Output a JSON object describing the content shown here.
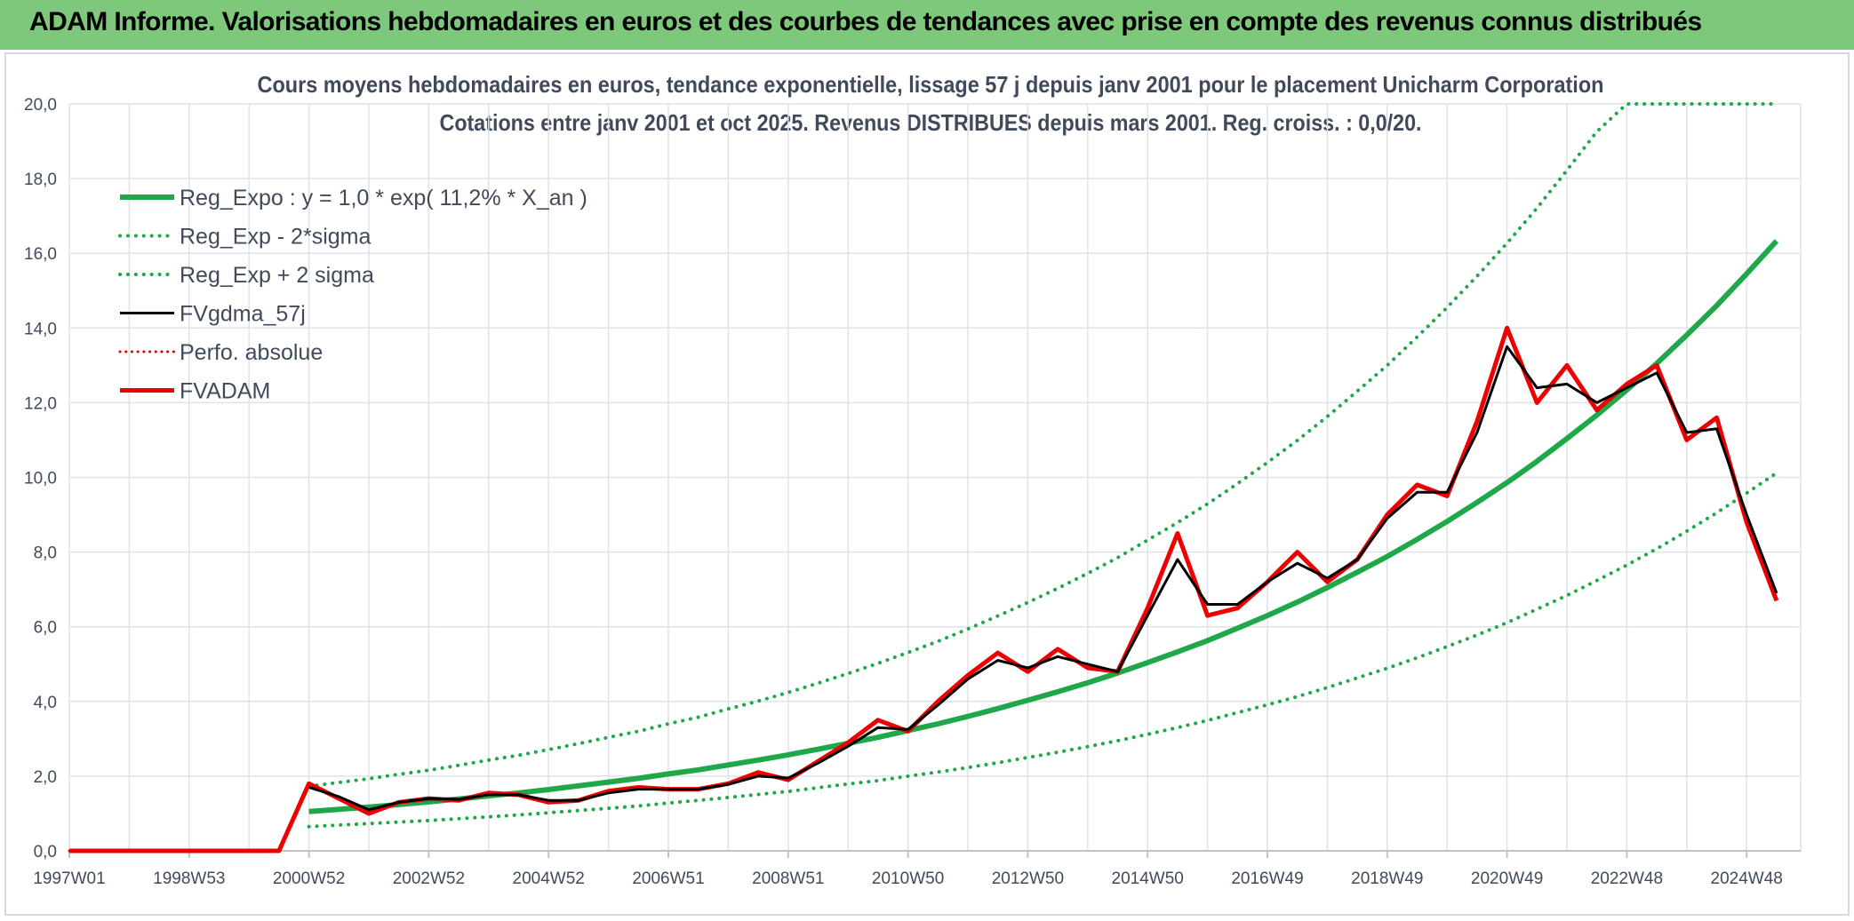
{
  "header": {
    "title": "ADAM Informe. Valorisations hebdomadaires en euros et des courbes de tendances avec prise en compte des revenus connus distribués"
  },
  "chart_data": {
    "type": "line",
    "title": "Cours moyens hebdomadaires en euros, tendance exponentielle, lissage 57 j depuis janv 2001 pour le placement Unicharm Corporation",
    "subtitle": "Cotations entre janv 2001 et oct 2025. Revenus DISTRIBUES depuis mars 2001. Reg. croiss. : 0,0/20.",
    "categories": [
      "1997W01",
      null,
      null,
      null,
      "1998W53",
      null,
      null,
      null,
      "2000W52",
      null,
      null,
      null,
      "2002W52",
      null,
      null,
      null,
      "2004W52",
      null,
      null,
      null,
      "2006W51",
      null,
      null,
      null,
      "2008W51",
      null,
      null,
      null,
      "2010W50",
      null,
      null,
      null,
      "2012W50",
      null,
      null,
      null,
      "2014W50",
      null,
      null,
      null,
      "2016W49",
      null,
      null,
      null,
      "2018W49",
      null,
      null,
      null,
      "2020W49",
      null,
      null,
      null,
      "2022W48",
      null,
      null,
      null,
      "2024W48",
      null
    ],
    "ylim": [
      0,
      20
    ],
    "yticks": [
      {
        "value": 0,
        "label": "0,0"
      },
      {
        "value": 2,
        "label": "2,0"
      },
      {
        "value": 4,
        "label": "4,0"
      },
      {
        "value": 6,
        "label": "6,0"
      },
      {
        "value": 8,
        "label": "8,0"
      },
      {
        "value": 10,
        "label": "10,0"
      },
      {
        "value": 12,
        "label": "12,0"
      },
      {
        "value": 14,
        "label": "14,0"
      },
      {
        "value": 16,
        "label": "16,0"
      },
      {
        "value": 18,
        "label": "18,0"
      },
      {
        "value": 20,
        "label": "20,0"
      }
    ],
    "grid": true,
    "legend": "upper left",
    "series": [
      {
        "name": "Reg_Expo : y = 1,0 * exp( 11,2% *  X_an )",
        "color": "#1fa84a",
        "line_style": "solid",
        "width": 6,
        "values": [
          null,
          null,
          null,
          null,
          null,
          null,
          null,
          null,
          1.05,
          1.11,
          1.17,
          1.24,
          1.31,
          1.39,
          1.47,
          1.55,
          1.64,
          1.74,
          1.84,
          1.94,
          2.06,
          2.17,
          2.3,
          2.43,
          2.57,
          2.72,
          2.88,
          3.04,
          3.22,
          3.4,
          3.6,
          3.81,
          4.03,
          4.26,
          4.5,
          4.76,
          5.04,
          5.33,
          5.63,
          5.96,
          6.3,
          6.66,
          7.05,
          7.46,
          7.88,
          8.34,
          8.82,
          9.33,
          9.86,
          10.43,
          11.04,
          11.67,
          12.34,
          13.05,
          13.81,
          14.6,
          15.45,
          16.33
        ]
      },
      {
        "name": "Reg_Exp - 2*sigma",
        "color": "#1fa84a",
        "line_style": "dotted",
        "width": 4,
        "values": [
          null,
          null,
          null,
          null,
          null,
          null,
          null,
          null,
          0.65,
          0.69,
          0.73,
          0.77,
          0.81,
          0.86,
          0.91,
          0.96,
          1.02,
          1.08,
          1.14,
          1.2,
          1.28,
          1.35,
          1.43,
          1.51,
          1.59,
          1.69,
          1.79,
          1.88,
          2.0,
          2.11,
          2.23,
          2.36,
          2.5,
          2.64,
          2.79,
          2.95,
          3.12,
          3.3,
          3.49,
          3.7,
          3.91,
          4.13,
          4.37,
          4.63,
          4.89,
          5.17,
          5.47,
          5.78,
          6.11,
          6.47,
          6.84,
          7.24,
          7.65,
          8.09,
          8.56,
          9.05,
          9.58,
          10.12
        ]
      },
      {
        "name": "Reg_Exp + 2 sigma",
        "color": "#1fa84a",
        "line_style": "dotted",
        "width": 4,
        "values": [
          null,
          null,
          null,
          null,
          null,
          null,
          null,
          null,
          1.73,
          1.83,
          1.93,
          2.05,
          2.16,
          2.29,
          2.43,
          2.56,
          2.71,
          2.87,
          3.04,
          3.2,
          3.4,
          3.58,
          3.8,
          4.01,
          4.24,
          4.49,
          4.75,
          5.02,
          5.31,
          5.61,
          5.94,
          6.29,
          6.65,
          7.03,
          7.43,
          7.85,
          8.32,
          8.79,
          9.29,
          9.83,
          10.4,
          10.99,
          11.63,
          12.31,
          13.0,
          13.76,
          14.55,
          15.39,
          16.27,
          17.21,
          18.22,
          19.26,
          20,
          20,
          20,
          20,
          20,
          20
        ]
      },
      {
        "name": "FVgdma_57j",
        "color": "#000000",
        "line_style": "solid",
        "width": 3,
        "values": [
          null,
          null,
          null,
          null,
          null,
          null,
          null,
          null,
          1.7,
          1.45,
          1.1,
          1.3,
          1.4,
          1.38,
          1.5,
          1.5,
          1.35,
          1.35,
          1.55,
          1.65,
          1.65,
          1.65,
          1.78,
          2.0,
          1.95,
          2.35,
          2.8,
          3.3,
          3.25,
          3.9,
          4.6,
          5.1,
          4.9,
          5.2,
          5.0,
          4.8,
          6.3,
          7.8,
          6.6,
          6.6,
          7.2,
          7.7,
          7.3,
          7.8,
          8.9,
          9.6,
          9.6,
          11.2,
          13.5,
          12.4,
          12.5,
          12.0,
          12.4,
          12.8,
          11.2,
          11.3,
          9.0,
          6.9
        ]
      },
      {
        "name": "Perfo. absolue",
        "color": "#e00000",
        "line_style": "dotted",
        "width": 3,
        "values": [
          0,
          0,
          0,
          0,
          0,
          0,
          0,
          0,
          1.8,
          1.4,
          1.0,
          1.3,
          1.4,
          1.35,
          1.55,
          1.5,
          1.3,
          1.35,
          1.6,
          1.7,
          1.65,
          1.65,
          1.8,
          2.1,
          1.9,
          2.4,
          2.9,
          3.5,
          3.2,
          4.0,
          4.7,
          5.3,
          4.8,
          5.4,
          4.9,
          4.8,
          6.5,
          8.5,
          6.3,
          6.5,
          7.2,
          8.0,
          7.2,
          7.8,
          9.0,
          9.8,
          9.5,
          11.5,
          14.0,
          12.0,
          13.0,
          11.8,
          12.5,
          13.0,
          11.0,
          11.6,
          8.8,
          6.7
        ]
      },
      {
        "name": "FVADAM",
        "color": "#ee0000",
        "line_style": "solid",
        "width": 5,
        "values": [
          0,
          0,
          0,
          0,
          0,
          0,
          0,
          0,
          1.8,
          1.4,
          1.0,
          1.3,
          1.4,
          1.35,
          1.55,
          1.5,
          1.3,
          1.35,
          1.6,
          1.7,
          1.65,
          1.65,
          1.8,
          2.1,
          1.9,
          2.4,
          2.9,
          3.5,
          3.2,
          4.0,
          4.7,
          5.3,
          4.8,
          5.4,
          4.9,
          4.8,
          6.5,
          8.5,
          6.3,
          6.5,
          7.2,
          8.0,
          7.2,
          7.8,
          9.0,
          9.8,
          9.5,
          11.5,
          14.0,
          12.0,
          13.0,
          11.8,
          12.5,
          13.0,
          11.0,
          11.6,
          8.8,
          6.7
        ]
      }
    ]
  }
}
